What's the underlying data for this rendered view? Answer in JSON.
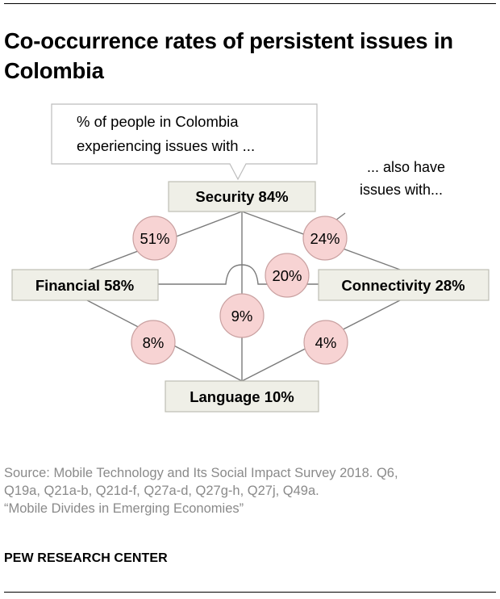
{
  "title": "Co-occurrence rates of persistent issues in Colombia",
  "callout": {
    "line1": "% of people in Colombia",
    "line2": "experiencing issues with ..."
  },
  "annotation": {
    "line1": "... also have",
    "line2": "issues with..."
  },
  "nodes": {
    "security": "Security 84%",
    "financial": "Financial 58%",
    "connectivity": "Connectivity 28%",
    "language": "Language 10%"
  },
  "edges": {
    "security_financial": "51%",
    "security_connectivity": "24%",
    "financial_connectivity": "20%",
    "security_language": "9%",
    "financial_language": "8%",
    "connectivity_language": "4%"
  },
  "source": {
    "line1": "Source: Mobile Technology and Its Social Impact Survey 2018. Q6,",
    "line2": "Q19a, Q21a-b, Q21d-f, Q27a-d, Q27g-h, Q27j, Q49a.",
    "line3": "“Mobile Divides in Emerging Economies”"
  },
  "brand": "PEW RESEARCH CENTER",
  "colors": {
    "node_fill": "#efefe7",
    "node_stroke": "#bdbdb3",
    "bubble_fill": "#f7d3d3",
    "bubble_stroke": "#c9a0a0",
    "line": "#7a7a7a",
    "source_text": "#8a8a8a"
  }
}
